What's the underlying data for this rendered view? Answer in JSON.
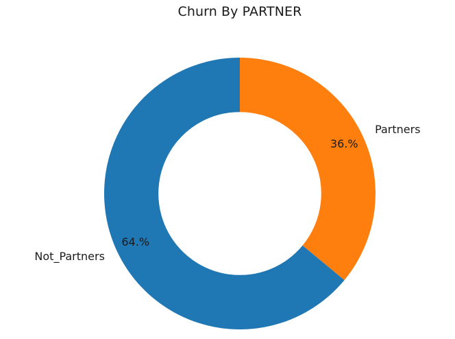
{
  "chart_data": {
    "type": "pie",
    "donut": true,
    "title": "Churn By PARTNER",
    "slices": [
      {
        "label": "Partners",
        "value": 36.0,
        "pct_label": "36.%",
        "color": "#ff7f0e"
      },
      {
        "label": "Not_Partners",
        "value": 64.0,
        "pct_label": "64.%",
        "color": "#1f77b4"
      }
    ],
    "start_angle_deg": 90,
    "direction": "clockwise",
    "hole_ratio": 0.6
  }
}
